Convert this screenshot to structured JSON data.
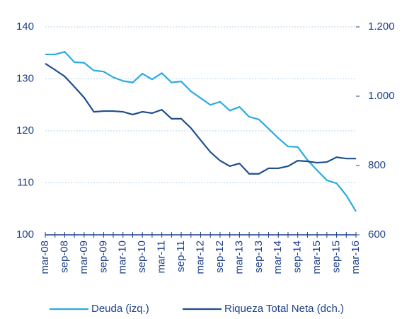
{
  "chart_data": {
    "type": "line",
    "categories": [
      "mar-08",
      null,
      "sep-08",
      null,
      "mar-09",
      null,
      "sep-09",
      null,
      "mar-10",
      null,
      "sep-10",
      null,
      "mar-11",
      null,
      "sep-11",
      null,
      "mar-12",
      null,
      "sep-12",
      null,
      "mar-13",
      null,
      "sep-13",
      null,
      "mar-14",
      null,
      "sep-14",
      null,
      "mar-15",
      null,
      "sep-15",
      null,
      "mar-16"
    ],
    "series": [
      {
        "name": "Deuda (izq.)",
        "color": "#29abe2",
        "values": [
          134.7,
          134.7,
          135.2,
          133.2,
          133.1,
          131.6,
          131.4,
          130.3,
          129.6,
          129.3,
          131.0,
          129.9,
          131.1,
          129.3,
          129.5,
          127.6,
          126.3,
          125.0,
          125.6,
          123.9,
          124.6,
          122.7,
          122.2,
          120.4,
          118.6,
          117.0,
          116.9,
          114.4,
          112.4,
          110.5,
          109.9,
          107.6,
          104.5
        ]
      },
      {
        "name": "Riqueza Total Neta (dch.)",
        "color": "#1f4e8c",
        "axis": "y2",
        "values": [
          1094,
          1076,
          1057,
          1027,
          996,
          955,
          957,
          957,
          955,
          947,
          955,
          951,
          961,
          935,
          935,
          908,
          873,
          839,
          814,
          798,
          806,
          776,
          776,
          792,
          792,
          798,
          814,
          812,
          808,
          810,
          824,
          820,
          820
        ]
      }
    ],
    "ylim": [
      100,
      140
    ],
    "yticks": [
      100,
      110,
      120,
      130,
      140
    ],
    "y2lim": [
      600,
      1200
    ],
    "y2ticks": [
      600,
      800,
      {
        "value": 1000,
        "label": "1.000"
      },
      {
        "value": 1200,
        "label": "1.200"
      }
    ],
    "grid": true,
    "legend": "bottom"
  }
}
